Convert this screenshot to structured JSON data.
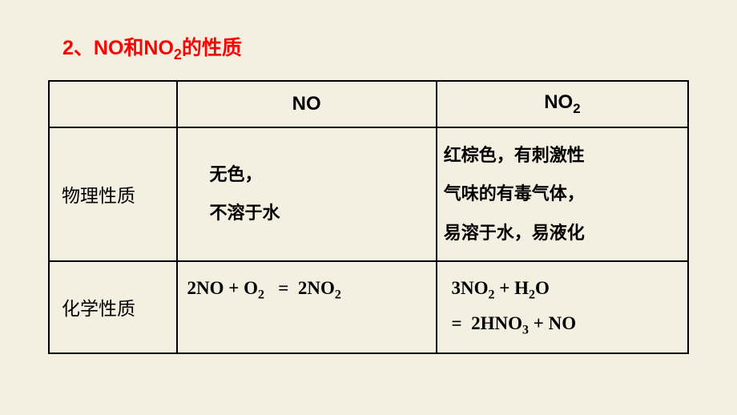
{
  "title_parts": {
    "prefix": "2、NO和NO",
    "sub": "2",
    "suffix": "的性质"
  },
  "header": {
    "col1": "",
    "col2": "NO",
    "col3_prefix": "NO",
    "col3_sub": "2"
  },
  "row1": {
    "label": "物理性质",
    "no_line1": "无色，",
    "no_line2": "不溶于水",
    "no2_line1": "红棕色，有刺激性",
    "no2_line2": "气味的有毒气体，",
    "no2_line3": "易溶于水，易液化"
  },
  "row2": {
    "label": "化学性质",
    "no_eq": "2NO + O₂   =  2NO₂",
    "no2_eq_line1": " 3NO₂ + H₂O",
    "no2_eq_line2": " =  2HNO₃ + NO"
  },
  "style": {
    "background_color": "#f3f0e1",
    "title_color": "#ff0000",
    "text_color": "#000000",
    "border_color": "#000000",
    "title_fontsize": 25,
    "header_fontsize": 24,
    "body_fontsize": 23
  }
}
